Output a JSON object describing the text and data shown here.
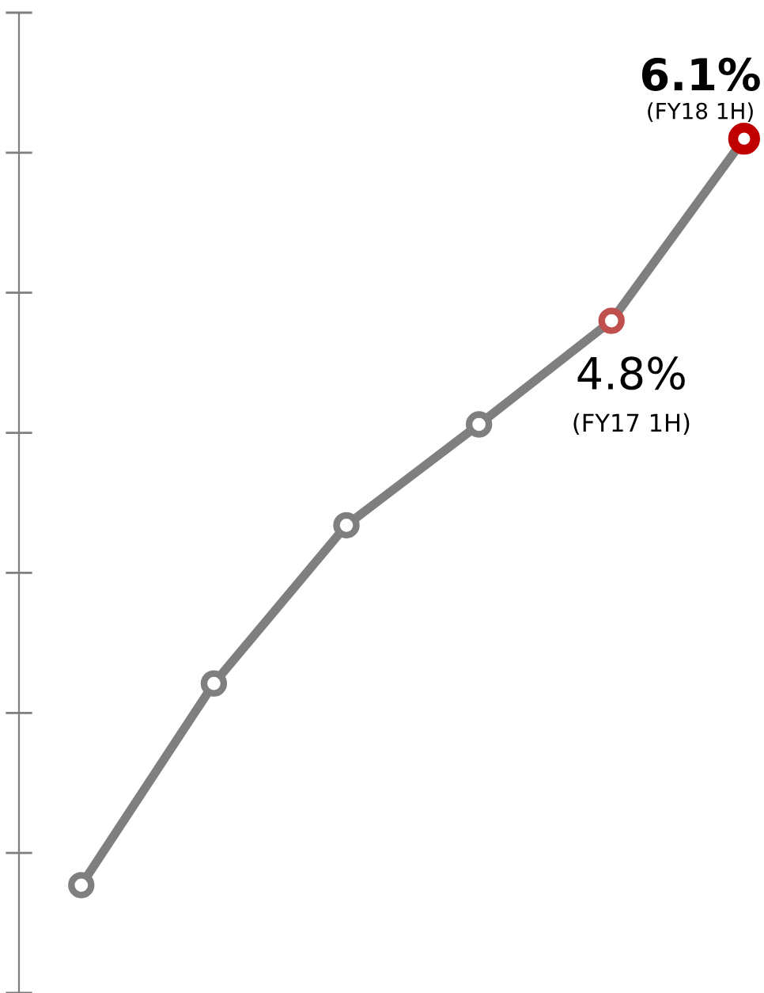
{
  "chart_data": {
    "type": "line",
    "categories": [
      null,
      null,
      null,
      null,
      null,
      null
    ],
    "series": [
      {
        "color": "#7f7f7f",
        "colors": [
          "#7f7f7f",
          "#7f7f7f",
          "#7f7f7f",
          "#7f7f7f",
          "#c0504d",
          "#c00000"
        ],
        "values": [
          0.77,
          2.21,
          3.34,
          4.06,
          4.8,
          6.1
        ],
        "value_labels": [
          null,
          null,
          null,
          null,
          "4.8%",
          "6.1%"
        ]
      }
    ],
    "ylim": [
      0,
      7
    ],
    "marker": "circle",
    "line_style": "solid",
    "grid": false,
    "legend": false,
    "tick_labels": false,
    "annotations": [
      "(FY17 1H)",
      "(FY18 1H)"
    ]
  }
}
